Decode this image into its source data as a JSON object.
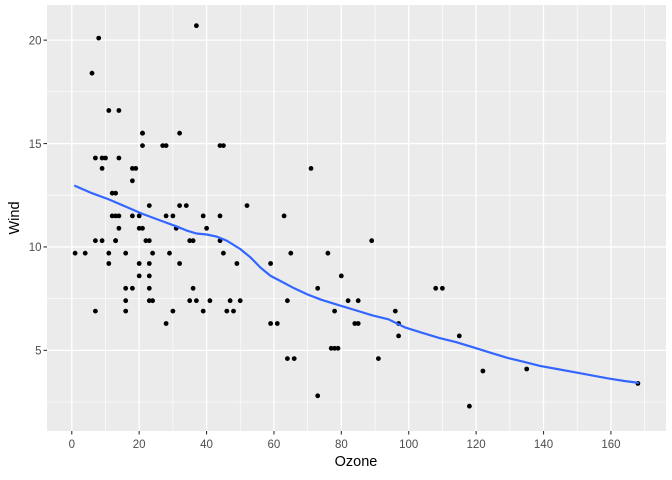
{
  "chart_data": {
    "type": "scatter",
    "title": "",
    "xlabel": "Ozone",
    "ylabel": "Wind",
    "xlim": [
      -7.35,
      176.35
    ],
    "ylim": [
      1.1,
      21.7
    ],
    "x_ticks": [
      0,
      20,
      40,
      60,
      80,
      100,
      120,
      140,
      160
    ],
    "x_minor_ticks": [
      10,
      30,
      50,
      70,
      90,
      110,
      130,
      150,
      170
    ],
    "y_ticks": [
      5,
      10,
      15,
      20
    ],
    "y_minor_ticks": [
      2.5,
      7.5,
      12.5,
      17.5
    ],
    "grid": "on",
    "legend_position": "none",
    "colors": {
      "background": "#FFFFFF",
      "panel_background": "#EBEBEB",
      "grid": "#FFFFFF",
      "point": "#000000",
      "smooth_line": "#3366FF",
      "axis_text": "#4D4D4D",
      "axis_title": "#000000",
      "tick": "#333333"
    },
    "points": [
      [
        41,
        7.4
      ],
      [
        36,
        8
      ],
      [
        12,
        12.6
      ],
      [
        18,
        11.5
      ],
      [
        28,
        14.9
      ],
      [
        23,
        8.6
      ],
      [
        19,
        13.8
      ],
      [
        8,
        20.1
      ],
      [
        7,
        6.9
      ],
      [
        16,
        9.7
      ],
      [
        11,
        9.2
      ],
      [
        14,
        10.9
      ],
      [
        18,
        13.2
      ],
      [
        14,
        11.5
      ],
      [
        34,
        12
      ],
      [
        6,
        18.4
      ],
      [
        30,
        11.5
      ],
      [
        11,
        9.7
      ],
      [
        1,
        9.7
      ],
      [
        11,
        16.6
      ],
      [
        4,
        9.7
      ],
      [
        32,
        12
      ],
      [
        23,
        12
      ],
      [
        45,
        14.9
      ],
      [
        115,
        5.7
      ],
      [
        37,
        7.4
      ],
      [
        29,
        9.7
      ],
      [
        71,
        13.8
      ],
      [
        39,
        11.5
      ],
      [
        23,
        8
      ],
      [
        21,
        14.9
      ],
      [
        37,
        20.7
      ],
      [
        20,
        9.2
      ],
      [
        12,
        11.5
      ],
      [
        13,
        10.3
      ],
      [
        135,
        4.1
      ],
      [
        49,
        9.2
      ],
      [
        32,
        9.2
      ],
      [
        64,
        4.6
      ],
      [
        40,
        10.9
      ],
      [
        77,
        5.1
      ],
      [
        97,
        6.3
      ],
      [
        97,
        5.7
      ],
      [
        85,
        7.4
      ],
      [
        10,
        14.3
      ],
      [
        27,
        14.9
      ],
      [
        7,
        14.3
      ],
      [
        48,
        6.9
      ],
      [
        35,
        10.3
      ],
      [
        61,
        6.3
      ],
      [
        79,
        5.1
      ],
      [
        63,
        11.5
      ],
      [
        16,
        6.9
      ],
      [
        80,
        8.6
      ],
      [
        108,
        8
      ],
      [
        20,
        8.6
      ],
      [
        52,
        12
      ],
      [
        82,
        7.4
      ],
      [
        50,
        7.4
      ],
      [
        64,
        7.4
      ],
      [
        59,
        9.2
      ],
      [
        39,
        6.9
      ],
      [
        9,
        13.8
      ],
      [
        16,
        7.4
      ],
      [
        78,
        6.9
      ],
      [
        35,
        7.4
      ],
      [
        66,
        4.6
      ],
      [
        122,
        4
      ],
      [
        89,
        10.3
      ],
      [
        110,
        8
      ],
      [
        44,
        11.5
      ],
      [
        28,
        11.5
      ],
      [
        65,
        9.7
      ],
      [
        22,
        10.3
      ],
      [
        59,
        6.3
      ],
      [
        23,
        7.4
      ],
      [
        31,
        10.9
      ],
      [
        44,
        10.3
      ],
      [
        21,
        15.5
      ],
      [
        9,
        14.3
      ],
      [
        45,
        9.7
      ],
      [
        168,
        3.4
      ],
      [
        73,
        8
      ],
      [
        76,
        9.7
      ],
      [
        118,
        2.3
      ],
      [
        84,
        6.3
      ],
      [
        85,
        6.3
      ],
      [
        96,
        6.9
      ],
      [
        78,
        5.1
      ],
      [
        73,
        2.8
      ],
      [
        91,
        4.6
      ],
      [
        47,
        7.4
      ],
      [
        32,
        15.5
      ],
      [
        20,
        10.9
      ],
      [
        23,
        10.3
      ],
      [
        21,
        10.9
      ],
      [
        24,
        9.7
      ],
      [
        44,
        14.9
      ],
      [
        21,
        15.5
      ],
      [
        28,
        6.3
      ],
      [
        9,
        10.3
      ],
      [
        13,
        11.5
      ],
      [
        46,
        6.9
      ],
      [
        18,
        13.8
      ],
      [
        13,
        10.3
      ],
      [
        24,
        7.4
      ],
      [
        16,
        8
      ],
      [
        13,
        12.6
      ],
      [
        23,
        9.2
      ],
      [
        36,
        10.3
      ],
      [
        7,
        10.3
      ],
      [
        14,
        16.6
      ],
      [
        30,
        6.9
      ],
      [
        14,
        14.3
      ],
      [
        18,
        8
      ],
      [
        20,
        11.5
      ]
    ],
    "smooth": {
      "name": "loess-fit",
      "points": [
        [
          1,
          12.95
        ],
        [
          6,
          12.6
        ],
        [
          11,
          12.3
        ],
        [
          16,
          11.95
        ],
        [
          21,
          11.6
        ],
        [
          26,
          11.3
        ],
        [
          31,
          11.0
        ],
        [
          34,
          10.8
        ],
        [
          37,
          10.65
        ],
        [
          40,
          10.6
        ],
        [
          43,
          10.5
        ],
        [
          46,
          10.3
        ],
        [
          50,
          9.9
        ],
        [
          53,
          9.5
        ],
        [
          56,
          9.0
        ],
        [
          59,
          8.6
        ],
        [
          62,
          8.35
        ],
        [
          66,
          8.0
        ],
        [
          70,
          7.7
        ],
        [
          74,
          7.45
        ],
        [
          79,
          7.2
        ],
        [
          84,
          6.95
        ],
        [
          89,
          6.7
        ],
        [
          94,
          6.5
        ],
        [
          99,
          6.1
        ],
        [
          104,
          5.85
        ],
        [
          109,
          5.6
        ],
        [
          114,
          5.4
        ],
        [
          119,
          5.15
        ],
        [
          124,
          4.9
        ],
        [
          129,
          4.65
        ],
        [
          134,
          4.45
        ],
        [
          139,
          4.25
        ],
        [
          144,
          4.1
        ],
        [
          149,
          3.95
        ],
        [
          154,
          3.8
        ],
        [
          159,
          3.65
        ],
        [
          164,
          3.52
        ],
        [
          168,
          3.43
        ]
      ]
    }
  }
}
